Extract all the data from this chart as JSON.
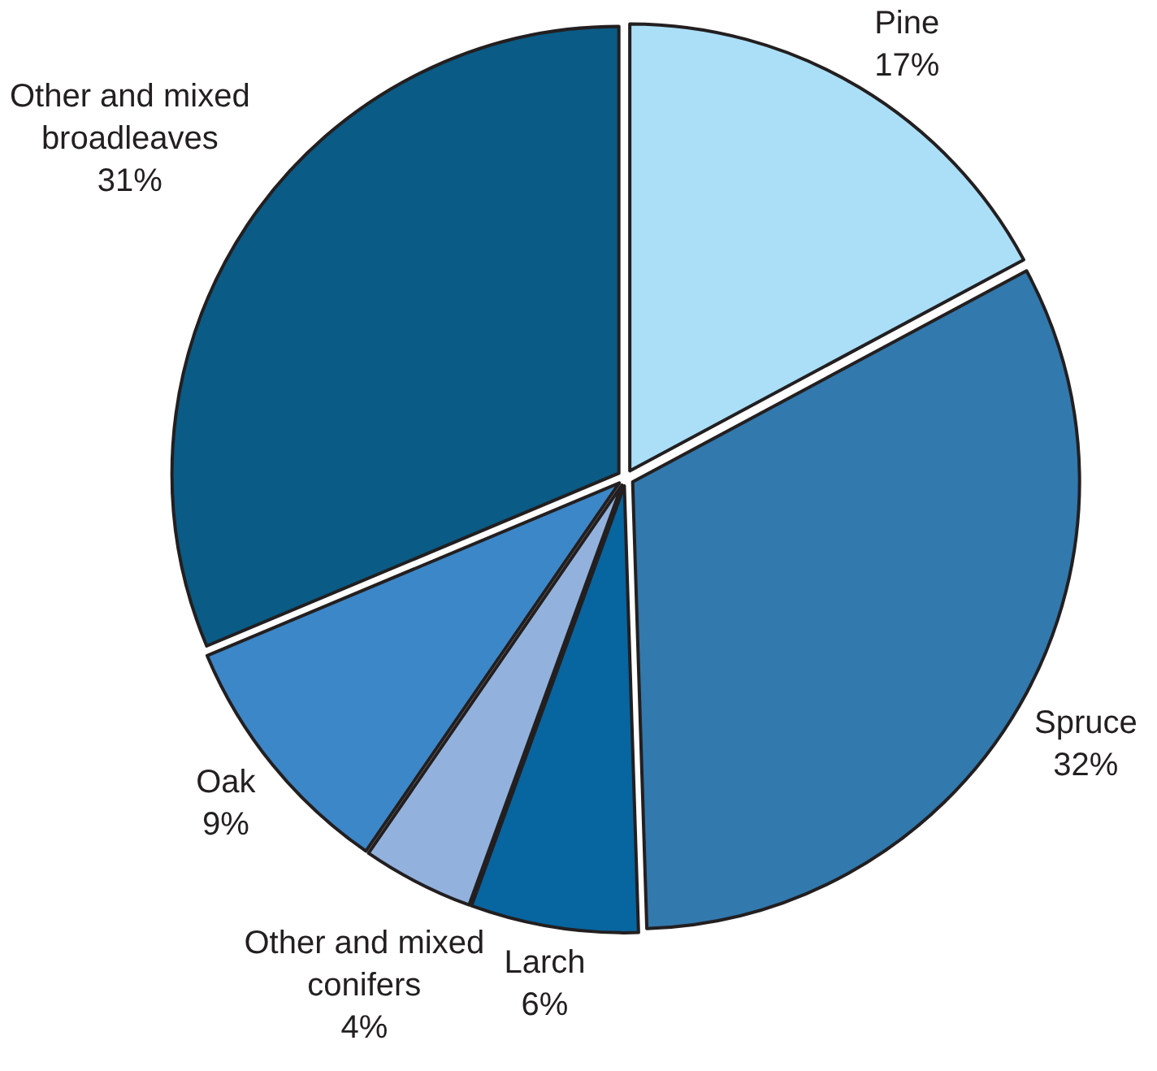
{
  "chart_data": {
    "type": "pie",
    "categories": [
      "Pine",
      "Spruce",
      "Larch",
      "Other and mixed conifers",
      "Oak",
      "Other and mixed broadleaves"
    ],
    "values": [
      17,
      32,
      6,
      4,
      9,
      31
    ],
    "colors": [
      "#abdff8",
      "#3279ad",
      "#0765a0",
      "#92b2dd",
      "#3c87c8",
      "#0a5b85"
    ],
    "value_labels": [
      "17%",
      "32%",
      "6%",
      "4%",
      "9%",
      "31%"
    ]
  }
}
